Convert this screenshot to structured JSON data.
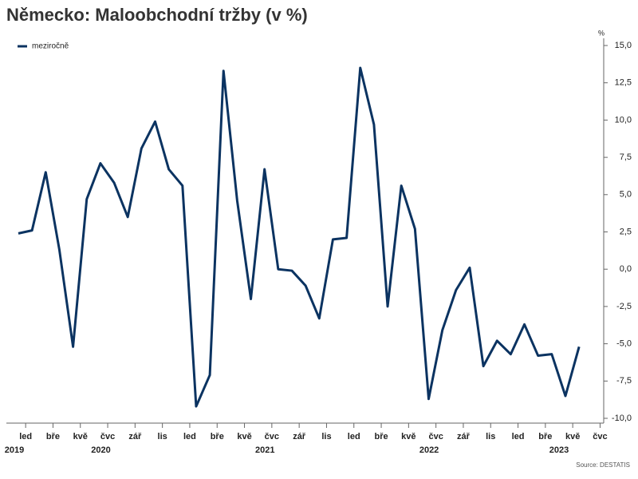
{
  "chart_data": {
    "type": "line",
    "title": "Německo: Maloobchodní tržby (v %)",
    "unit_label": "%",
    "source": "Source: DESTATIS",
    "categories": [
      null,
      "led",
      null,
      "bře",
      null,
      "kvě",
      null,
      "čvc",
      null,
      "zář",
      null,
      "lis",
      null,
      "led",
      null,
      "bře",
      null,
      "kvě",
      null,
      "čvc",
      null,
      "zář",
      null,
      "lis",
      null,
      "led",
      null,
      "bře",
      null,
      "kvě",
      null,
      "čvc",
      null,
      "zář",
      null,
      "lis",
      null,
      "led",
      null,
      "bře",
      null,
      "kvě",
      null,
      "čvc"
    ],
    "year_labels": [
      "2019",
      "2020",
      "2021",
      "2022",
      "2023"
    ],
    "series": [
      {
        "name": "meziročně",
        "color": "#0b3361",
        "values": [
          2.4,
          2.6,
          6.5,
          1.3,
          -5.2,
          4.7,
          7.1,
          5.8,
          3.5,
          8.1,
          9.9,
          6.7,
          5.6,
          -9.2,
          -7.1,
          13.3,
          4.6,
          -2.0,
          6.7,
          0.0,
          -0.1,
          -1.1,
          -3.3,
          2.0,
          2.1,
          13.5,
          9.7,
          -2.5,
          5.6,
          2.7,
          -8.7,
          -4.1,
          -1.4,
          0.1,
          -6.5,
          -4.8,
          -5.7,
          -3.7,
          -5.8,
          -5.7,
          -8.5,
          -5.2,
          null,
          null
        ]
      }
    ],
    "ylim": [
      -10,
      15
    ],
    "yticks": [
      {
        "value": -10,
        "label": "-10,0"
      },
      {
        "value": -7.5,
        "label": "-7,5"
      },
      {
        "value": -5,
        "label": "-5,0"
      },
      {
        "value": -2.5,
        "label": "-2,5"
      },
      {
        "value": 0,
        "label": "0,0"
      },
      {
        "value": 2.5,
        "label": "2,5"
      },
      {
        "value": 5,
        "label": "5,0"
      },
      {
        "value": 7.5,
        "label": "7,5"
      },
      {
        "value": 10,
        "label": "10,0"
      },
      {
        "value": 12.5,
        "label": "12,5"
      },
      {
        "value": 15,
        "label": "15,0"
      }
    ],
    "legend": "top-left"
  }
}
